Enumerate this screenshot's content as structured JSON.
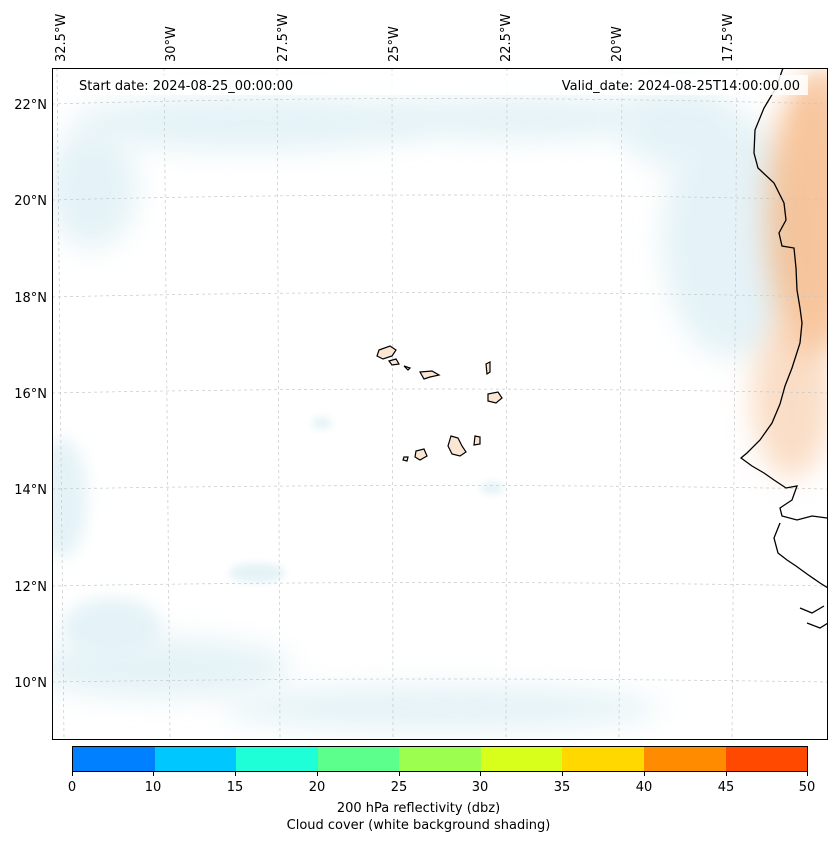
{
  "map": {
    "start_date": "Start date: 2024-08-25_00:00:00",
    "valid_date": "Valid_date: 2024-08-25T14:00:00.00",
    "lon_labels": [
      "32.5°W",
      "30°W",
      "27.5°W",
      "25°W",
      "22.5°W",
      "20°W",
      "17.5°W"
    ],
    "lat_labels": [
      "22°N",
      "20°N",
      "18°N",
      "16°N",
      "14°N",
      "12°N",
      "10°N"
    ]
  },
  "colorbar": {
    "ticks": [
      "0",
      "10",
      "15",
      "20",
      "25",
      "30",
      "35",
      "40",
      "45",
      "50"
    ],
    "colors": [
      "#0080ff",
      "#00c8ff",
      "#1effd8",
      "#5cff8c",
      "#9cff50",
      "#d8ff1c",
      "#ffd800",
      "#ff8c00",
      "#ff4800"
    ],
    "label_line1": "200 hPa reflectivity (dbz)",
    "label_line2": "Cloud cover (white background shading)"
  }
}
